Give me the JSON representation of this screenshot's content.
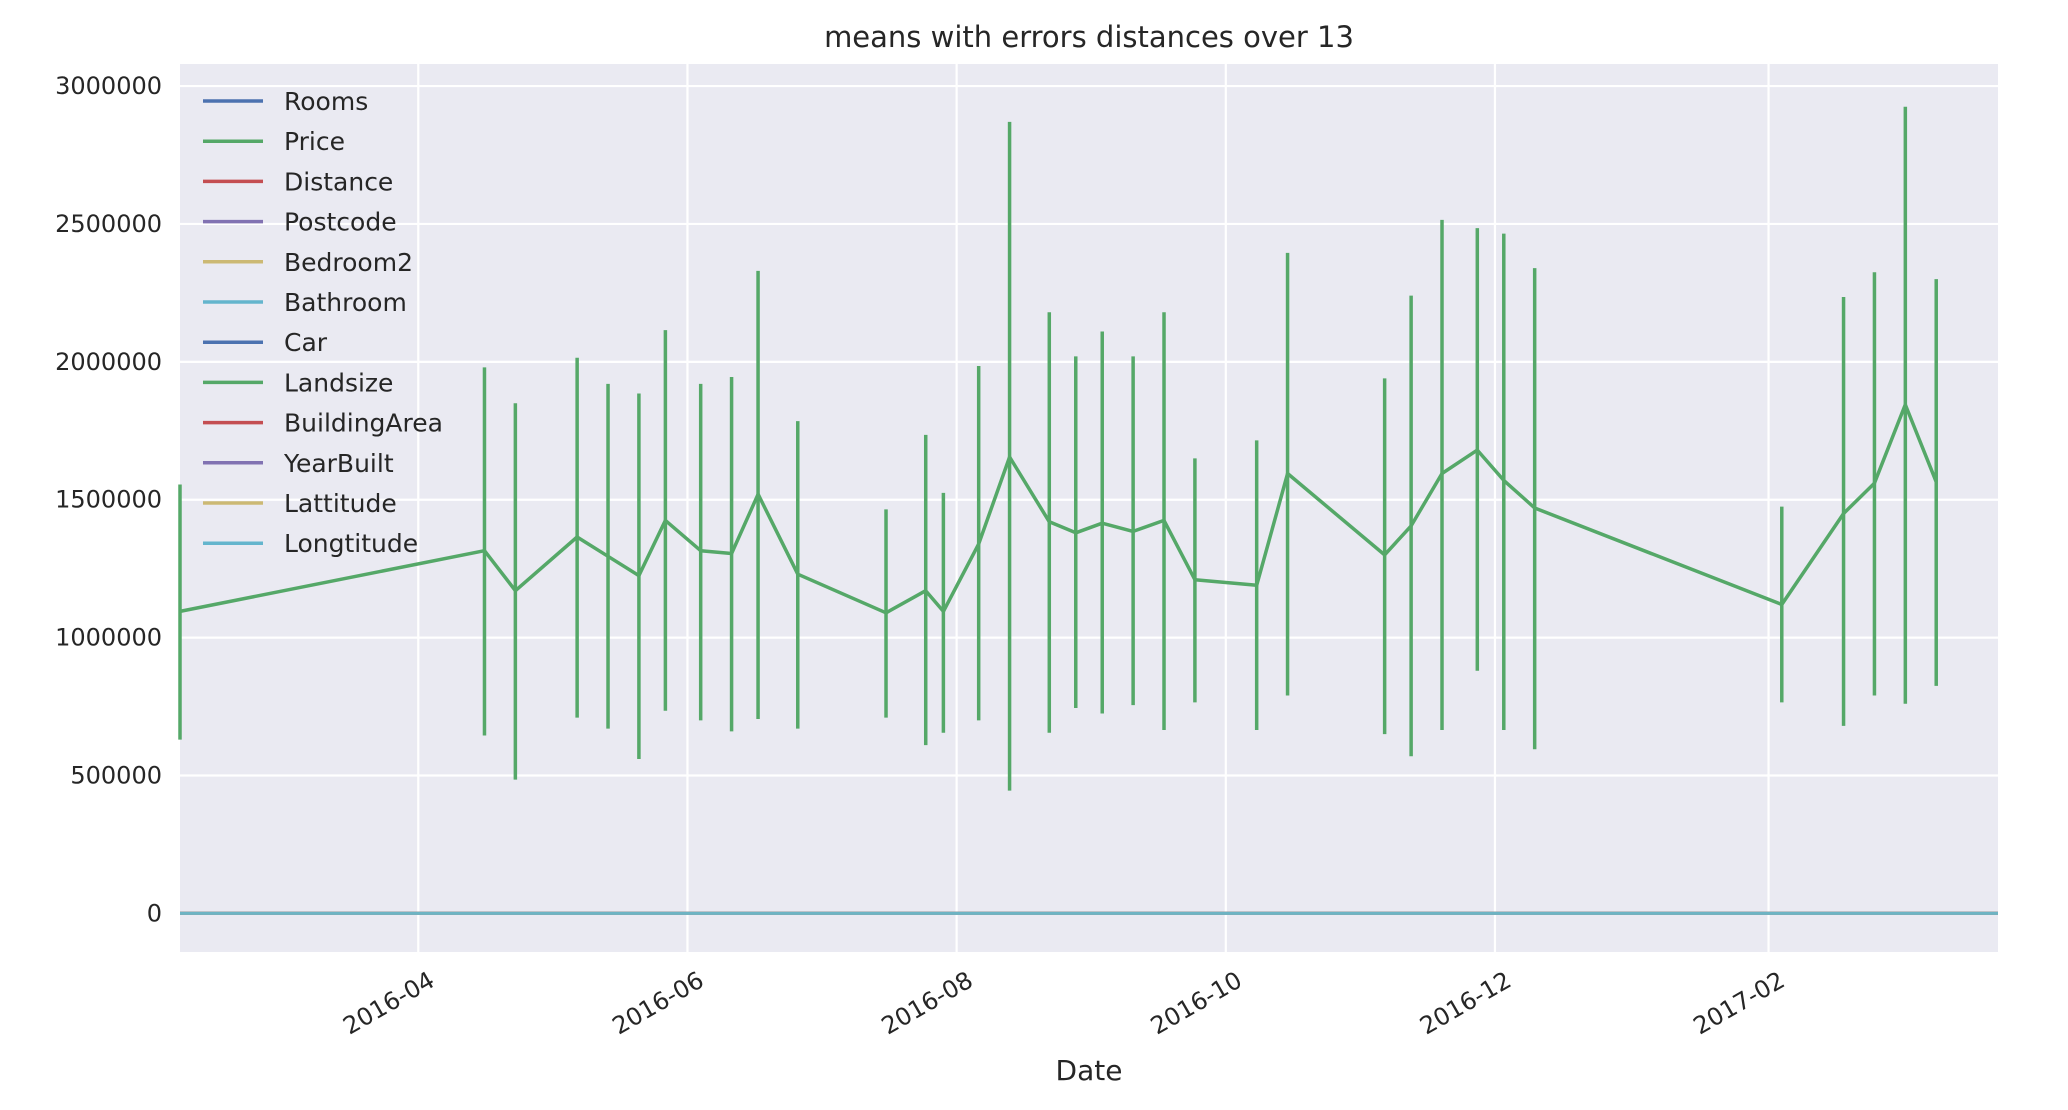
{
  "chart_data": {
    "type": "line",
    "title": "means with errors distances over 13",
    "xlabel": "Date",
    "ylabel": "",
    "x_axis": "date",
    "xlim": [
      "2016-02-07",
      "2017-03-25"
    ],
    "ylim": [
      -140000,
      3080000
    ],
    "x_tick_labels": [
      "2016-04",
      "2016-06",
      "2016-08",
      "2016-10",
      "2016-12",
      "2017-02"
    ],
    "y_ticks": [
      0,
      500000,
      1000000,
      1500000,
      2000000,
      2500000,
      3000000
    ],
    "y_tick_labels": [
      "0",
      "500000",
      "1000000",
      "1500000",
      "2000000",
      "2500000",
      "3000000"
    ],
    "grid": true,
    "legend_position": "top-left",
    "background": "#EAEAF2",
    "series": [
      {
        "name": "Rooms",
        "color": "#4C72B0",
        "values": []
      },
      {
        "name": "Price",
        "color": "#55A868",
        "x": [
          "2016-02-07",
          "2016-04-16",
          "2016-04-23",
          "2016-05-07",
          "2016-05-14",
          "2016-05-21",
          "2016-05-27",
          "2016-06-04",
          "2016-06-11",
          "2016-06-17",
          "2016-06-26",
          "2016-07-16",
          "2016-07-25",
          "2016-07-29",
          "2016-08-06",
          "2016-08-13",
          "2016-08-22",
          "2016-08-28",
          "2016-09-03",
          "2016-09-10",
          "2016-09-17",
          "2016-09-24",
          "2016-10-08",
          "2016-10-15",
          "2016-11-06",
          "2016-11-12",
          "2016-11-19",
          "2016-11-27",
          "2016-12-03",
          "2016-12-10",
          "2017-02-04",
          "2017-02-18",
          "2017-02-25",
          "2017-03-04",
          "2017-03-11"
        ],
        "values": [
          1095000,
          1315000,
          1170000,
          1365000,
          1295000,
          1225000,
          1425000,
          1315000,
          1305000,
          1520000,
          1230000,
          1090000,
          1170000,
          1095000,
          1340000,
          1655000,
          1420000,
          1380000,
          1415000,
          1385000,
          1425000,
          1210000,
          1190000,
          1595000,
          1300000,
          1405000,
          1595000,
          1680000,
          1570000,
          1470000,
          1120000,
          1450000,
          1560000,
          1845000,
          1565000
        ],
        "error_low": [
          630000,
          645000,
          485000,
          710000,
          670000,
          560000,
          735000,
          700000,
          660000,
          705000,
          670000,
          710000,
          610000,
          655000,
          700000,
          445000,
          655000,
          745000,
          725000,
          755000,
          665000,
          765000,
          665000,
          790000,
          650000,
          570000,
          665000,
          880000,
          665000,
          595000,
          765000,
          680000,
          790000,
          760000,
          825000
        ],
        "error_high": [
          1555000,
          1980000,
          1850000,
          2015000,
          1920000,
          1885000,
          2115000,
          1920000,
          1945000,
          2330000,
          1785000,
          1465000,
          1735000,
          1525000,
          1985000,
          2870000,
          2180000,
          2020000,
          2110000,
          2020000,
          2180000,
          1650000,
          1715000,
          2395000,
          1940000,
          2240000,
          2515000,
          2485000,
          2465000,
          2340000,
          1475000,
          2235000,
          2325000,
          2925000,
          2300000
        ]
      },
      {
        "name": "Distance",
        "color": "#C44E52",
        "values": [
          0
        ]
      },
      {
        "name": "Postcode",
        "color": "#8172B2",
        "values": [
          0
        ]
      },
      {
        "name": "Bedroom2",
        "color": "#CCB974",
        "values": [
          0
        ]
      },
      {
        "name": "Bathroom",
        "color": "#64B5CD",
        "values": [
          0
        ]
      },
      {
        "name": "Car",
        "color": "#4C72B0",
        "values": [
          0
        ]
      },
      {
        "name": "Landsize",
        "color": "#55A868",
        "values": [
          0
        ]
      },
      {
        "name": "BuildingArea",
        "color": "#C44E52",
        "values": [
          0
        ]
      },
      {
        "name": "YearBuilt",
        "color": "#8172B2",
        "values": [
          0
        ]
      },
      {
        "name": "Lattitude",
        "color": "#CCB974",
        "values": [
          0
        ]
      },
      {
        "name": "Longtitude",
        "color": "#64B5CD",
        "values": [
          0
        ]
      }
    ]
  }
}
